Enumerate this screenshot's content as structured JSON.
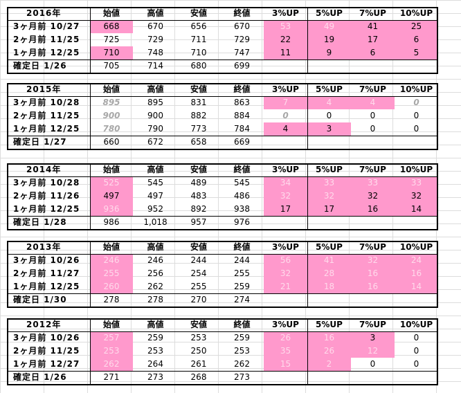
{
  "headers": [
    "始値",
    "高値",
    "安値",
    "終値",
    "3%UP",
    "5%UP",
    "7%UP",
    "10%UP"
  ],
  "tables": [
    {
      "year": "2016年",
      "rows": [
        {
          "label": "3ヶ月前 10/27",
          "vals": [
            "668",
            "670",
            "656",
            "670",
            "53",
            "49",
            "41",
            "25"
          ],
          "pink": [
            1,
            0,
            0,
            0,
            1,
            1,
            1,
            1
          ],
          "style": [
            "",
            "",
            "",
            "",
            "light",
            "light",
            "",
            ""
          ]
        },
        {
          "label": "2ヶ月前 11/25",
          "vals": [
            "725",
            "729",
            "711",
            "729",
            "22",
            "19",
            "17",
            "6"
          ],
          "pink": [
            0,
            0,
            0,
            0,
            1,
            1,
            1,
            1
          ],
          "style": [
            "",
            "",
            "",
            "",
            "",
            "",
            "",
            ""
          ]
        },
        {
          "label": "1ヶ月前 12/25",
          "vals": [
            "710",
            "748",
            "710",
            "747",
            "11",
            "9",
            "6",
            "5"
          ],
          "pink": [
            1,
            0,
            0,
            0,
            1,
            1,
            1,
            1
          ],
          "style": [
            "",
            "",
            "",
            "",
            "",
            "",
            "",
            ""
          ]
        },
        {
          "label": "確定日 1/26",
          "vals": [
            "705",
            "714",
            "680",
            "699",
            "",
            "",
            "",
            ""
          ],
          "pink": [
            0,
            0,
            0,
            0,
            0,
            0,
            0,
            0
          ],
          "style": [
            "",
            "",
            "",
            "",
            "",
            "",
            "",
            ""
          ]
        }
      ]
    },
    {
      "year": "2015年",
      "rows": [
        {
          "label": "3ヶ月前 10/28",
          "vals": [
            "895",
            "895",
            "831",
            "863",
            "7",
            "4",
            "4",
            "0"
          ],
          "pink": [
            0,
            0,
            0,
            0,
            1,
            1,
            1,
            0
          ],
          "style": [
            "ghost",
            "",
            "",
            "",
            "light",
            "light",
            "light",
            "ghost"
          ]
        },
        {
          "label": "2ヶ月前 11/25",
          "vals": [
            "900",
            "900",
            "882",
            "884",
            "0",
            "0",
            "0",
            "0"
          ],
          "pink": [
            0,
            0,
            0,
            0,
            0,
            0,
            0,
            0
          ],
          "style": [
            "ghost",
            "",
            "",
            "",
            "ghost",
            "",
            "",
            ""
          ]
        },
        {
          "label": "1ヶ月前 12/25",
          "vals": [
            "780",
            "790",
            "773",
            "784",
            "4",
            "3",
            "0",
            "0"
          ],
          "pink": [
            0,
            0,
            0,
            0,
            1,
            1,
            0,
            0
          ],
          "style": [
            "ghost",
            "",
            "",
            "",
            "",
            "",
            "",
            ""
          ]
        },
        {
          "label": "確定日 1/27",
          "vals": [
            "660",
            "672",
            "658",
            "669",
            "",
            "",
            "",
            ""
          ],
          "pink": [
            0,
            0,
            0,
            0,
            0,
            0,
            0,
            0
          ],
          "style": [
            "",
            "",
            "",
            "",
            "",
            "",
            "",
            ""
          ]
        }
      ]
    },
    {
      "year": "2014年",
      "rows": [
        {
          "label": "3ヶ月前 10/28",
          "vals": [
            "525",
            "545",
            "489",
            "545",
            "34",
            "33",
            "33",
            "33"
          ],
          "pink": [
            1,
            0,
            0,
            0,
            1,
            1,
            1,
            1
          ],
          "style": [
            "light",
            "",
            "",
            "",
            "light",
            "light",
            "light",
            "light"
          ]
        },
        {
          "label": "2ヶ月前 11/26",
          "vals": [
            "497",
            "497",
            "483",
            "486",
            "32",
            "32",
            "32",
            "32"
          ],
          "pink": [
            1,
            0,
            0,
            0,
            1,
            1,
            1,
            1
          ],
          "style": [
            "",
            "",
            "",
            "",
            "light",
            "light",
            "",
            ""
          ]
        },
        {
          "label": "1ヶ月前 12/25",
          "vals": [
            "936",
            "952",
            "892",
            "938",
            "17",
            "17",
            "16",
            "14"
          ],
          "pink": [
            1,
            0,
            0,
            0,
            1,
            1,
            1,
            1
          ],
          "style": [
            "light",
            "",
            "",
            "",
            "",
            "",
            "",
            ""
          ]
        },
        {
          "label": "確定日 1/28",
          "vals": [
            "986",
            "1,018",
            "957",
            "976",
            "",
            "",
            "",
            ""
          ],
          "pink": [
            0,
            0,
            0,
            0,
            0,
            0,
            0,
            0
          ],
          "style": [
            "",
            "",
            "",
            "",
            "",
            "",
            "",
            ""
          ]
        }
      ]
    },
    {
      "year": "2013年",
      "rows": [
        {
          "label": "3ヶ月前 10/26",
          "vals": [
            "246",
            "246",
            "244",
            "244",
            "56",
            "41",
            "32",
            "24"
          ],
          "pink": [
            1,
            0,
            0,
            0,
            1,
            1,
            1,
            1
          ],
          "style": [
            "light",
            "",
            "",
            "",
            "light",
            "light",
            "light",
            "light"
          ]
        },
        {
          "label": "2ヶ月前 11/27",
          "vals": [
            "255",
            "256",
            "254",
            "255",
            "32",
            "28",
            "16",
            "16"
          ],
          "pink": [
            1,
            0,
            0,
            0,
            1,
            1,
            1,
            1
          ],
          "style": [
            "light",
            "",
            "",
            "",
            "light",
            "light",
            "light",
            "light"
          ]
        },
        {
          "label": "1ヶ月前 12/25",
          "vals": [
            "260",
            "262",
            "255",
            "259",
            "21",
            "18",
            "16",
            "14"
          ],
          "pink": [
            1,
            0,
            0,
            0,
            1,
            1,
            1,
            1
          ],
          "style": [
            "light",
            "",
            "",
            "",
            "light",
            "light",
            "light",
            "light"
          ]
        },
        {
          "label": "確定日 1/30",
          "vals": [
            "278",
            "278",
            "270",
            "274",
            "",
            "",
            "",
            ""
          ],
          "pink": [
            0,
            0,
            0,
            0,
            0,
            0,
            0,
            0
          ],
          "style": [
            "",
            "",
            "",
            "",
            "",
            "",
            "",
            ""
          ]
        }
      ]
    },
    {
      "year": "2012年",
      "rows": [
        {
          "label": "3ヶ月前 10/26",
          "vals": [
            "257",
            "259",
            "253",
            "259",
            "26",
            "16",
            "3",
            "0"
          ],
          "pink": [
            1,
            0,
            0,
            0,
            1,
            1,
            1,
            0
          ],
          "style": [
            "light",
            "",
            "",
            "",
            "light",
            "light",
            "",
            ""
          ]
        },
        {
          "label": "2ヶ月前 11/25",
          "vals": [
            "253",
            "253",
            "250",
            "253",
            "35",
            "26",
            "12",
            "0"
          ],
          "pink": [
            1,
            0,
            0,
            0,
            1,
            1,
            1,
            0
          ],
          "style": [
            "light",
            "",
            "",
            "",
            "light",
            "light",
            "light",
            ""
          ]
        },
        {
          "label": "1ヶ月前 12/27",
          "vals": [
            "262",
            "264",
            "261",
            "262",
            "15",
            "2",
            "0",
            "0"
          ],
          "pink": [
            1,
            0,
            0,
            0,
            1,
            1,
            0,
            0
          ],
          "style": [
            "light",
            "",
            "",
            "",
            "light",
            "light",
            "",
            ""
          ]
        },
        {
          "label": "確定日 1/26",
          "vals": [
            "271",
            "273",
            "268",
            "273",
            "",
            "",
            "",
            ""
          ],
          "pink": [
            0,
            0,
            0,
            0,
            0,
            0,
            0,
            0
          ],
          "style": [
            "",
            "",
            "",
            "",
            "",
            "",
            "",
            ""
          ]
        }
      ]
    }
  ]
}
